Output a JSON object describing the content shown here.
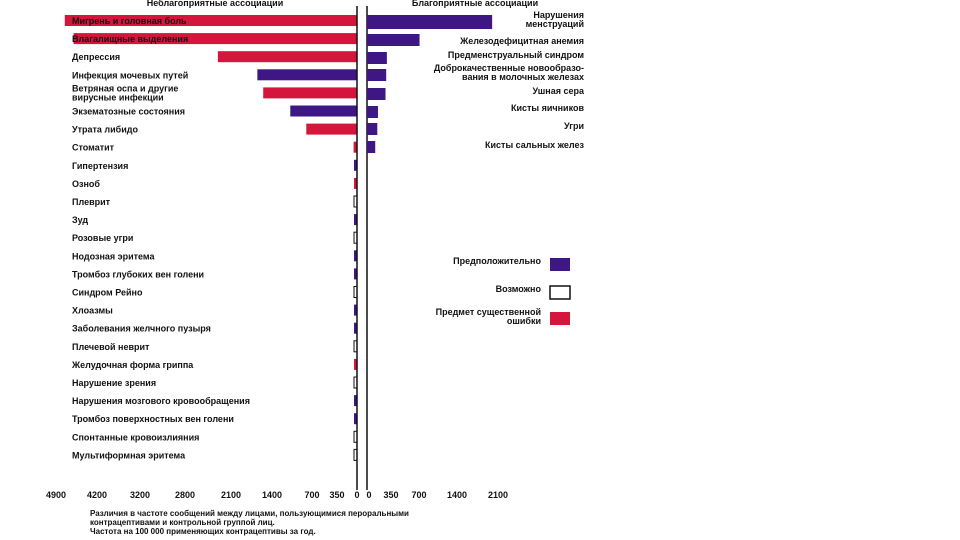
{
  "chart_data": {
    "type": "bar",
    "orientation": "horizontal",
    "left_header": "Неблагоприятные ассоциации",
    "right_header": "Благоприятные ассоциации",
    "colors": {
      "probable": "#3f1784",
      "possible": "#ffffff",
      "error": "#d4163c",
      "outline": "#111111"
    },
    "adverse": [
      {
        "label": "Мигрень и головная боль",
        "value": 4750,
        "category": "error"
      },
      {
        "label": "Влагалищные выделения",
        "value": 4600,
        "category": "error"
      },
      {
        "label": "Депрессия",
        "value": 2300,
        "category": "error"
      },
      {
        "label": "Инфекция мочевых путей",
        "value": 1650,
        "category": "probable"
      },
      {
        "label": "Ветряная оспа и другие\nвирусные инфекции",
        "value": 1550,
        "category": "error"
      },
      {
        "label": "Экзематозные состояния",
        "value": 1080,
        "category": "probable"
      },
      {
        "label": "Утрата либидо",
        "value": 800,
        "category": "error"
      },
      {
        "label": "Стоматит",
        "value": 170,
        "category": "error"
      },
      {
        "label": "Гипертензия",
        "value": 150,
        "category": "probable"
      },
      {
        "label": "Озноб",
        "value": 140,
        "category": "error"
      },
      {
        "label": "Плеврит",
        "value": 130,
        "category": "possible"
      },
      {
        "label": "Зуд",
        "value": 120,
        "category": "probable"
      },
      {
        "label": "Розовые угри",
        "value": 110,
        "category": "possible"
      },
      {
        "label": "Нодозная эритема",
        "value": 100,
        "category": "probable"
      },
      {
        "label": "Тромбоз глубоких вен голени",
        "value": 90,
        "category": "probable"
      },
      {
        "label": "Синдром Рейно",
        "value": 80,
        "category": "possible"
      },
      {
        "label": "Хлоазмы",
        "value": 75,
        "category": "probable"
      },
      {
        "label": "Заболевания желчного пузыря",
        "value": 70,
        "category": "probable"
      },
      {
        "label": "Плечевой неврит",
        "value": 60,
        "category": "possible"
      },
      {
        "label": "Желудочная форма гриппа",
        "value": 55,
        "category": "error"
      },
      {
        "label": "Нарушение зрения",
        "value": 50,
        "category": "possible"
      },
      {
        "label": "Нарушения мозгового кровообращения",
        "value": 45,
        "category": "probable"
      },
      {
        "label": "Тромбоз поверхностных вен голени",
        "value": 40,
        "category": "probable"
      },
      {
        "label": "Спонтанные кровоизлияния",
        "value": 35,
        "category": "possible"
      },
      {
        "label": "Мультиформная эритема",
        "value": 30,
        "category": "possible"
      }
    ],
    "beneficial": [
      {
        "label": "Нарушения\nменструаций",
        "value": 2000,
        "category": "probable"
      },
      {
        "label": "Железодефицитная анемия",
        "value": 710,
        "category": "probable"
      },
      {
        "label": "Предменструальный синдром",
        "value": 290,
        "category": "probable"
      },
      {
        "label": "Доброкачественные новообразо-\nвания в молочных железах",
        "value": 280,
        "category": "probable"
      },
      {
        "label": "Ушная сера",
        "value": 270,
        "category": "probable"
      },
      {
        "label": "Кисты яичников",
        "value": 160,
        "category": "probable"
      },
      {
        "label": "Угри",
        "value": 150,
        "category": "probable"
      },
      {
        "label": "Кисты сальных желез",
        "value": 120,
        "category": "probable"
      }
    ],
    "x_left_ticks": [
      "4900",
      "4200",
      "3200",
      "2800",
      "2100",
      "1400",
      "700",
      "350",
      "0"
    ],
    "x_right_ticks": [
      "0",
      "350",
      "700",
      "1400",
      "2100"
    ],
    "legend": [
      {
        "label": "Предположительно",
        "category": "probable"
      },
      {
        "label": "Возможно",
        "category": "possible"
      },
      {
        "label": "Предмет существенной\nошибки",
        "category": "error"
      }
    ],
    "footnote": [
      "Различия в частоте сообщений между лицами, пользующимися пероральными",
      "контрацептивами и контрольной группой лиц.",
      "Частота на 100 000 применяющих контрацептивы за год."
    ]
  }
}
